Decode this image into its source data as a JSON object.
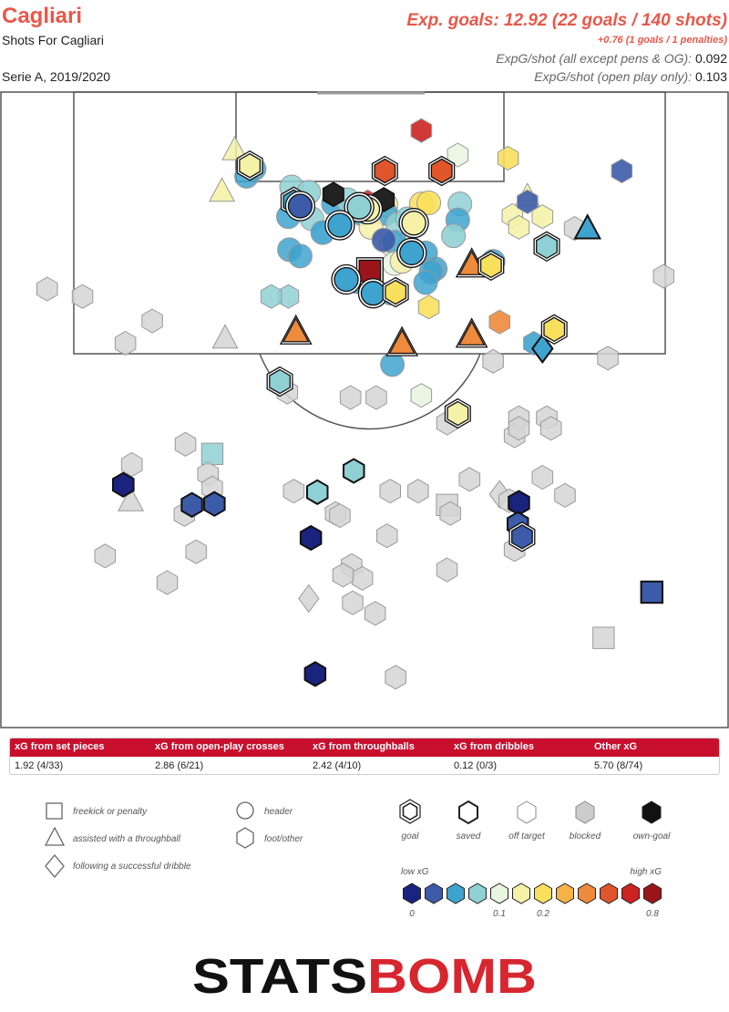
{
  "header": {
    "team": "Cagliari",
    "subtitle": "Shots For Cagliari",
    "season": "Serie A, 2019/2020",
    "xg_main": "Exp. goals: 12.92 (22 goals / 140 shots)",
    "xg_pens": "+0.76 (1 goals / 1 penalties)",
    "xg_line1_label": "ExpG/shot (all except pens & OG):",
    "xg_line1_value": "0.092",
    "xg_line2_label": "ExpG/shot (open play only):",
    "xg_line2_value": "0.103"
  },
  "xg_table": {
    "columns": [
      {
        "label": "xG from set pieces",
        "value": "1.92 (4/33)"
      },
      {
        "label": "xG from open-play crosses",
        "value": "2.86 (6/21)"
      },
      {
        "label": "xG from throughballs",
        "value": "2.42 (4/10)"
      },
      {
        "label": "xG from dribbles",
        "value": "0.12 (0/3)"
      },
      {
        "label": "Other xG",
        "value": "5.70 (8/74)"
      }
    ]
  },
  "legend": {
    "shapes": [
      {
        "icon": "square-icon",
        "label": "freekick or penalty"
      },
      {
        "icon": "triangle-icon",
        "label": "assisted with a throughball"
      },
      {
        "icon": "diamond-icon",
        "label": "following a successful dribble"
      },
      {
        "icon": "circle-icon",
        "label": "header"
      },
      {
        "icon": "hexagon-icon",
        "label": "foot/other"
      }
    ],
    "outcomes": [
      {
        "label": "goal"
      },
      {
        "label": "saved"
      },
      {
        "label": "off target"
      },
      {
        "label": "blocked"
      },
      {
        "label": "own-goal"
      }
    ],
    "scale_low": "low xG",
    "scale_high": "high xG",
    "scale_ticks": [
      "0",
      "0.1",
      "0.2",
      "0.8"
    ],
    "scale_colors": [
      "#1a237e",
      "#3c5ba8",
      "#3ea3cf",
      "#8fd0d4",
      "#e8f5e0",
      "#f5f2a8",
      "#f9e05c",
      "#f6b147",
      "#ee8a3c",
      "#e0552a",
      "#cc2222",
      "#9b1518"
    ]
  },
  "logo": {
    "part1": "STATS",
    "part2": "BOMB"
  },
  "chart_data": {
    "type": "scatter",
    "description_units": "shot location in metres from the left touchline (x, 0-68) and from the attacked goal line (y, 0-60, half pitch)",
    "title": "Cagliari",
    "subtitle": "Shots For Cagliari",
    "xlim": [
      0,
      68
    ],
    "ylim": [
      0,
      60
    ],
    "shots": [
      [
        39.3,
        3.7,
        0.52,
        "f",
        "off",
        0
      ],
      [
        42.7,
        6.0,
        0.08,
        "f",
        "blk",
        0
      ],
      [
        47.4,
        6.3,
        0.15,
        "f",
        "off",
        0
      ],
      [
        58.0,
        7.5,
        0.02,
        "f",
        "off",
        0
      ],
      [
        23.3,
        7.0,
        0.14,
        "f",
        "goal",
        0
      ],
      [
        35.9,
        7.5,
        0.42,
        "f",
        "goal",
        0
      ],
      [
        41.2,
        7.5,
        0.4,
        "f",
        "goal",
        0
      ],
      [
        21.9,
        5.5,
        0.14,
        "t",
        "blk",
        0
      ],
      [
        23.7,
        7.3,
        0.04,
        "h",
        "blk",
        0
      ],
      [
        23.0,
        8.0,
        0.04,
        "h",
        "blk",
        0
      ],
      [
        20.7,
        9.4,
        0.12,
        "t",
        "off",
        0
      ],
      [
        27.2,
        9.0,
        0.06,
        "h",
        "blk",
        0
      ],
      [
        28.8,
        9.5,
        0.07,
        "h",
        "off",
        0
      ],
      [
        27.4,
        10.4,
        0.05,
        "f",
        "goal",
        0
      ],
      [
        28.0,
        10.8,
        0.03,
        "h",
        "goal",
        0
      ],
      [
        31.1,
        10.6,
        0.04,
        "h",
        "blk",
        0
      ],
      [
        32.4,
        10.2,
        0.07,
        "h",
        "blk",
        0
      ],
      [
        31.1,
        9.7,
        0.01,
        "f",
        "og",
        0
      ],
      [
        34.3,
        10.4,
        0.5,
        "f",
        "blk",
        0
      ],
      [
        34.3,
        11.1,
        0.12,
        "h",
        "goal",
        0
      ],
      [
        33.5,
        10.9,
        0.07,
        "h",
        "goal",
        0
      ],
      [
        35.8,
        10.2,
        0.01,
        "f",
        "og",
        0
      ],
      [
        36.0,
        10.7,
        0.12,
        "h",
        "blk",
        0
      ],
      [
        39.3,
        10.6,
        0.15,
        "h",
        "blk",
        0
      ],
      [
        40.0,
        10.5,
        0.15,
        "h",
        "off",
        0
      ],
      [
        42.9,
        10.6,
        0.07,
        "h",
        "blk",
        0
      ],
      [
        49.2,
        10.4,
        0.02,
        "f",
        "off",
        0
      ],
      [
        49.2,
        9.9,
        0.12,
        "t",
        "blk",
        0
      ],
      [
        47.8,
        11.7,
        0.14,
        "f",
        "blk",
        0
      ],
      [
        50.6,
        11.8,
        0.11,
        "f",
        "off",
        0
      ],
      [
        26.9,
        11.8,
        0.04,
        "h",
        "blk",
        0
      ],
      [
        29.1,
        12.0,
        0.06,
        "h",
        "blk",
        0
      ],
      [
        30.1,
        13.3,
        0.05,
        "h",
        "off",
        0
      ],
      [
        33.7,
        11.5,
        0.04,
        "h",
        "blk",
        0
      ],
      [
        31.7,
        12.6,
        0.05,
        "h",
        "goal",
        0
      ],
      [
        36.0,
        11.5,
        0.05,
        "h",
        "blk",
        0
      ],
      [
        34.6,
        12.8,
        0.12,
        "h",
        "blk",
        0
      ],
      [
        37.1,
        12.5,
        0.06,
        "h",
        "blk",
        0
      ],
      [
        38.0,
        12.0,
        0.06,
        "h",
        "off",
        0
      ],
      [
        38.6,
        12.4,
        0.14,
        "h",
        "goal",
        0
      ],
      [
        42.7,
        12.1,
        0.04,
        "h",
        "blk",
        0
      ],
      [
        42.3,
        13.6,
        0.07,
        "h",
        "off",
        0
      ],
      [
        48.4,
        12.8,
        0.1,
        "f",
        "off",
        0
      ],
      [
        53.6,
        12.9,
        0.05,
        "f",
        "blk",
        0
      ],
      [
        51.0,
        14.6,
        0.07,
        "f",
        "goal",
        0
      ],
      [
        54.8,
        12.9,
        0.05,
        "t",
        "saved",
        0
      ],
      [
        35.8,
        14.0,
        0.03,
        "h",
        "off",
        0
      ],
      [
        36.5,
        14.4,
        0.09,
        "h",
        "blk",
        0
      ],
      [
        38.2,
        14.7,
        0.08,
        "h",
        "blk",
        0
      ],
      [
        36.8,
        14.2,
        0.05,
        "h",
        "blk",
        0
      ],
      [
        27.0,
        14.9,
        0.05,
        "h",
        "blk",
        0
      ],
      [
        28.0,
        15.5,
        0.04,
        "h",
        "blk",
        0
      ],
      [
        38.4,
        15.2,
        0.05,
        "h",
        "goal",
        0
      ],
      [
        39.7,
        15.2,
        0.05,
        "h",
        "blk",
        0
      ],
      [
        36.8,
        16.2,
        0.08,
        "h",
        "blk",
        0
      ],
      [
        37.5,
        16.0,
        0.1,
        "h",
        "blk",
        0
      ],
      [
        40.6,
        16.7,
        0.05,
        "h",
        "blk",
        0
      ],
      [
        44.0,
        16.3,
        0.36,
        "t",
        "goal",
        0
      ],
      [
        45.8,
        16.4,
        0.15,
        "f",
        "goal",
        0
      ],
      [
        46.0,
        16.0,
        0.05,
        "h",
        "blk",
        0
      ],
      [
        34.3,
        17.3,
        0.12,
        "f",
        "blk",
        0
      ],
      [
        40.2,
        17.0,
        0.04,
        "h",
        "blk",
        0
      ],
      [
        33.3,
        17.9,
        0.05,
        "h",
        "off",
        0
      ],
      [
        34.5,
        16.9,
        0.8,
        "s",
        "goal",
        0
      ],
      [
        32.3,
        17.7,
        0.04,
        "h",
        "goal",
        0
      ],
      [
        34.8,
        19.0,
        0.04,
        "h",
        "goal",
        0
      ],
      [
        36.5,
        19.0,
        0.04,
        "h",
        "blk",
        0
      ],
      [
        39.7,
        18.0,
        0.05,
        "h",
        "blk",
        0
      ],
      [
        36.9,
        18.9,
        0.15,
        "f",
        "goal",
        0
      ],
      [
        40.0,
        20.3,
        0.15,
        "f",
        "off",
        0
      ],
      [
        26.9,
        19.3,
        0.06,
        "f",
        "blk",
        0
      ],
      [
        25.3,
        19.3,
        0.06,
        "f",
        "blk",
        0
      ],
      [
        7.7,
        19.3,
        0.05,
        "f",
        "blk",
        0
      ],
      [
        4.4,
        18.6,
        0.04,
        "f",
        "blk",
        0
      ],
      [
        61.9,
        17.4,
        0.05,
        "f",
        "blk",
        0
      ],
      [
        14.2,
        21.6,
        0.04,
        "f",
        "blk",
        0
      ],
      [
        11.7,
        23.7,
        0.04,
        "f",
        "blk",
        0
      ],
      [
        21.0,
        23.2,
        0.05,
        "t",
        "blk",
        0
      ],
      [
        27.6,
        22.6,
        0.33,
        "t",
        "goal",
        0
      ],
      [
        37.5,
        23.7,
        0.36,
        "t",
        "goal",
        0
      ],
      [
        44.0,
        22.9,
        0.33,
        "t",
        "goal",
        0
      ],
      [
        46.6,
        21.7,
        0.33,
        "f",
        "off",
        0
      ],
      [
        49.8,
        23.7,
        0.05,
        "f",
        "off",
        0
      ],
      [
        51.7,
        22.4,
        0.15,
        "f",
        "goal",
        0
      ],
      [
        50.6,
        24.2,
        0.05,
        "d",
        "saved",
        0
      ],
      [
        46.0,
        25.4,
        0.05,
        "f",
        "blk",
        0
      ],
      [
        36.6,
        25.7,
        0.05,
        "h",
        "blk",
        0
      ],
      [
        26.1,
        27.3,
        0.06,
        "f",
        "goal",
        0
      ],
      [
        26.8,
        28.3,
        0.05,
        "f",
        "blk",
        0
      ],
      [
        32.7,
        28.8,
        0.05,
        "f",
        "blk",
        0
      ],
      [
        35.1,
        28.8,
        0.05,
        "f",
        "blk",
        0
      ],
      [
        39.3,
        28.6,
        0.08,
        "f",
        "off",
        0
      ],
      [
        42.7,
        30.3,
        0.12,
        "f",
        "goal",
        0
      ],
      [
        41.7,
        31.2,
        0.05,
        "f",
        "blk",
        0
      ],
      [
        48.4,
        30.7,
        0.05,
        "f",
        "blk",
        0
      ],
      [
        48.0,
        32.4,
        0.05,
        "f",
        "blk",
        0
      ],
      [
        48.4,
        31.7,
        0.04,
        "f",
        "blk",
        0
      ],
      [
        51.0,
        30.7,
        0.05,
        "f",
        "blk",
        0
      ],
      [
        51.4,
        31.7,
        0.05,
        "f",
        "blk",
        0
      ],
      [
        56.7,
        25.1,
        0.02,
        "f",
        "blk",
        0
      ],
      [
        17.3,
        33.2,
        0.05,
        "f",
        "blk",
        0
      ],
      [
        19.8,
        34.1,
        0.07,
        "s",
        "blk",
        0
      ],
      [
        19.4,
        36.0,
        0.04,
        "f",
        "blk",
        0
      ],
      [
        19.8,
        37.3,
        0.04,
        "f",
        "blk",
        0
      ],
      [
        12.3,
        35.1,
        0.02,
        "f",
        "blk",
        0
      ],
      [
        11.5,
        37.0,
        0.01,
        "f",
        "saved",
        0
      ],
      [
        12.2,
        38.5,
        0.02,
        "t",
        "blk",
        0
      ],
      [
        17.9,
        38.9,
        0.02,
        "f",
        "saved",
        0
      ],
      [
        20.0,
        38.8,
        0.02,
        "f",
        "saved",
        0
      ],
      [
        17.2,
        39.8,
        0.05,
        "f",
        "blk",
        0
      ],
      [
        27.4,
        37.6,
        0.04,
        "f",
        "blk",
        0
      ],
      [
        29.6,
        37.7,
        0.06,
        "f",
        "saved",
        0
      ],
      [
        33.0,
        35.7,
        0.06,
        "f",
        "saved",
        0
      ],
      [
        31.3,
        39.7,
        0.05,
        "f",
        "blk",
        0
      ],
      [
        31.7,
        39.9,
        0.05,
        "f",
        "blk",
        0
      ],
      [
        36.4,
        37.6,
        0.05,
        "f",
        "blk",
        0
      ],
      [
        39.0,
        37.6,
        0.05,
        "f",
        "blk",
        0
      ],
      [
        41.7,
        38.9,
        0.05,
        "s",
        "blk",
        0
      ],
      [
        42.0,
        39.7,
        0.05,
        "f",
        "blk",
        0
      ],
      [
        43.8,
        36.5,
        0.02,
        "f",
        "blk",
        0
      ],
      [
        46.6,
        37.9,
        0.04,
        "d",
        "blk",
        0
      ],
      [
        47.5,
        38.5,
        0.02,
        "f",
        "blk",
        0
      ],
      [
        48.4,
        38.7,
        0.01,
        "f",
        "saved",
        0
      ],
      [
        50.6,
        36.3,
        0.02,
        "f",
        "blk",
        0
      ],
      [
        52.7,
        38.0,
        0.02,
        "f",
        "blk",
        0
      ],
      [
        48.3,
        40.7,
        0.02,
        "f",
        "saved",
        0
      ],
      [
        48.7,
        41.9,
        0.02,
        "f",
        "goal",
        0
      ],
      [
        29.0,
        42.0,
        0.01,
        "f",
        "saved",
        0
      ],
      [
        36.1,
        41.8,
        0.05,
        "f",
        "blk",
        0
      ],
      [
        48.0,
        43.1,
        0.02,
        "f",
        "blk",
        0
      ],
      [
        32.8,
        44.6,
        0.03,
        "f",
        "blk",
        0
      ],
      [
        33.8,
        45.8,
        0.02,
        "f",
        "blk",
        0
      ],
      [
        32.0,
        45.5,
        0.02,
        "f",
        "blk",
        0
      ],
      [
        41.7,
        45.0,
        0.02,
        "f",
        "blk",
        0
      ],
      [
        9.8,
        43.7,
        0.02,
        "f",
        "blk",
        0
      ],
      [
        18.3,
        43.3,
        0.02,
        "f",
        "blk",
        0
      ],
      [
        15.6,
        46.2,
        0.01,
        "f",
        "blk",
        0
      ],
      [
        28.8,
        47.7,
        0.05,
        "d",
        "blk",
        0
      ],
      [
        32.9,
        48.1,
        0.02,
        "f",
        "blk",
        0
      ],
      [
        35.0,
        49.1,
        0.05,
        "f",
        "blk",
        0
      ],
      [
        60.8,
        47.1,
        0.02,
        "s",
        "saved",
        0
      ],
      [
        56.3,
        51.4,
        0.02,
        "s",
        "blk",
        0
      ],
      [
        29.4,
        54.8,
        0.01,
        "f",
        "saved",
        0
      ],
      [
        36.9,
        55.1,
        0.02,
        "f",
        "blk",
        0
      ]
    ]
  }
}
